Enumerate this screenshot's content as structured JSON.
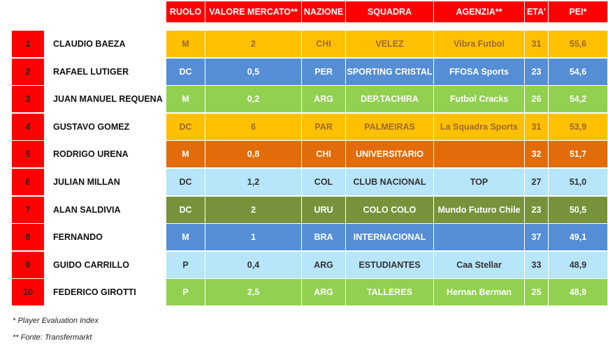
{
  "headers": [
    "RUOLO",
    "VALORE MERCATO**",
    "NAZIONE",
    "SQUADRA",
    "AGENZIA**",
    "ETA'",
    "PEI*"
  ],
  "colors": {
    "header": "#ff0000",
    "rank": "#ff0000",
    "yellow": "#ffc000",
    "blue": "#558ed5",
    "green": "#92d050",
    "orange": "#e26b0a",
    "lightblue": "#b7e5fa",
    "olive": "#76933c"
  },
  "rows": [
    {
      "rank": "1",
      "name": "CLAUDIO BAEZA",
      "role": "M",
      "value": "2",
      "nation": "CHI",
      "team": "VELEZ",
      "agency": "Vibra Futbol",
      "age": "31",
      "pei": "55,6",
      "color": "yellow",
      "text_color": "#9c6a2a"
    },
    {
      "rank": "2",
      "name": "RAFAEL LUTIGER",
      "role": "DC",
      "value": "0,5",
      "nation": "PER",
      "team": "SPORTING CRISTAL",
      "agency": "FFOSA Sports",
      "age": "23",
      "pei": "54,6",
      "color": "blue",
      "text_color": "#ffffff"
    },
    {
      "rank": "3",
      "name": "JUAN MANUEL REQUENA",
      "role": "M",
      "value": "0,2",
      "nation": "ARG",
      "team": "DEP.TACHIRA",
      "agency": "Futbol Cracks",
      "age": "26",
      "pei": "54,2",
      "color": "green",
      "text_color": "#ffffff"
    },
    {
      "rank": "4",
      "name": "GUSTAVO GOMEZ",
      "role": "DC",
      "value": "6",
      "nation": "PAR",
      "team": "PALMEIRAS",
      "agency": "La Squadra Sports",
      "age": "31",
      "pei": "53,9",
      "color": "yellow",
      "text_color": "#9c6a2a"
    },
    {
      "rank": "5",
      "name": "RODRIGO URENA",
      "role": "M",
      "value": "0,8",
      "nation": "CHI",
      "team": "UNIVERSITARIO",
      "agency": "",
      "age": "32",
      "pei": "51,7",
      "color": "orange",
      "text_color": "#ffffff"
    },
    {
      "rank": "6",
      "name": "JULIAN MILLAN",
      "role": "DC",
      "value": "1,2",
      "nation": "COL",
      "team": "CLUB NACIONAL",
      "agency": "TOP",
      "age": "27",
      "pei": "51,0",
      "color": "lightblue",
      "text_color": "#333333"
    },
    {
      "rank": "7",
      "name": "ALAN SALDIVIA",
      "role": "DC",
      "value": "2",
      "nation": "URU",
      "team": "COLO COLO",
      "agency": "Mundo Futuro Chile",
      "age": "23",
      "pei": "50,5",
      "color": "olive",
      "text_color": "#ffffff"
    },
    {
      "rank": "8",
      "name": "FERNANDO",
      "role": "M",
      "value": "1",
      "nation": "BRA",
      "team": "INTERNACIONAL",
      "agency": "",
      "age": "37",
      "pei": "49,1",
      "color": "blue",
      "text_color": "#ffffff"
    },
    {
      "rank": "9",
      "name": "GUIDO CARRILLO",
      "role": "P",
      "value": "0,4",
      "nation": "ARG",
      "team": "ESTUDIANTES",
      "agency": "Caa Stellar",
      "age": "33",
      "pei": "48,9",
      "color": "lightblue",
      "text_color": "#333333"
    },
    {
      "rank": "10",
      "name": "FEDERICO GIROTTI",
      "role": "P",
      "value": "2,5",
      "nation": "ARG",
      "team": "TALLERES",
      "agency": "Hernan Berman",
      "age": "25",
      "pei": "48,9",
      "color": "green",
      "text_color": "#ffffff"
    }
  ],
  "footnotes": [
    "* Player Evaluation Index",
    "** Fonte: Transfermarkt"
  ]
}
